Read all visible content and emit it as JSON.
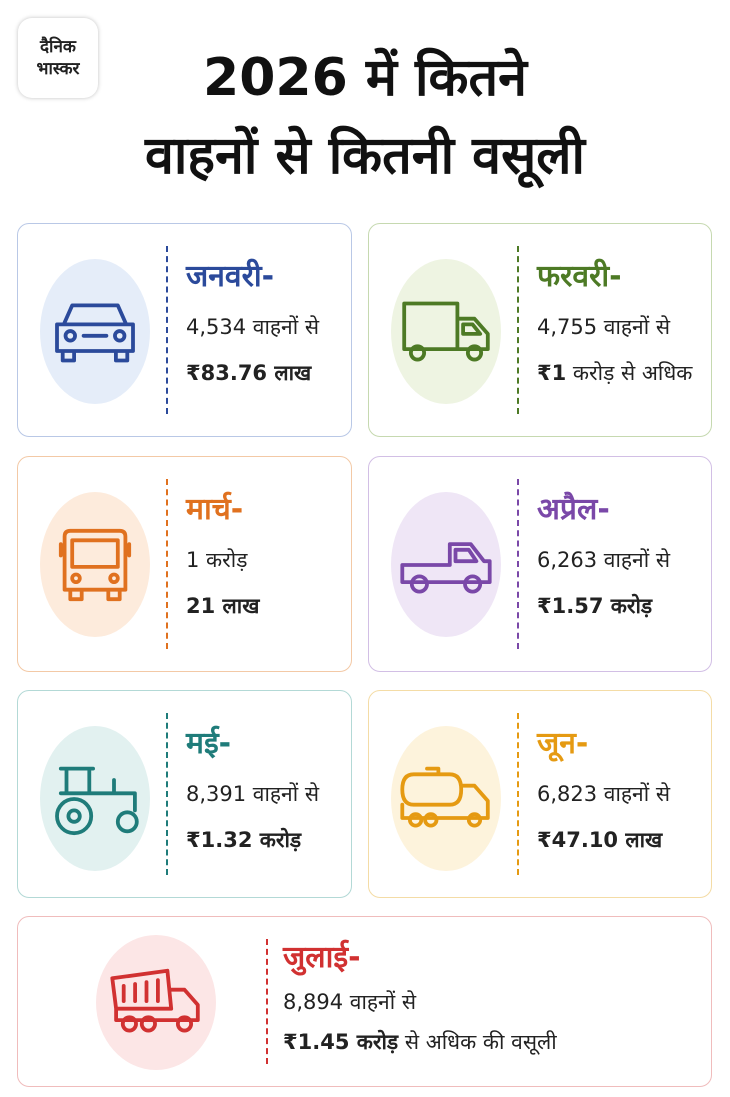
{
  "logo": {
    "line1": "दैनिक",
    "line2": "भास्कर"
  },
  "header": {
    "title_line1": "2026 में कितने",
    "title_line2": "वाहनों से कितनी वसूली"
  },
  "cards": [
    {
      "month": "जनवरी-",
      "line1": "4,534 वाहनों से",
      "line2": "₹83.76 लाख"
    },
    {
      "month": "फरवरी-",
      "line1": "4,755 वाहनों से",
      "line2": "₹1",
      "line2_rest": "करोड़ से अधिक"
    },
    {
      "month": "मार्च-",
      "line1": "1 करोड़",
      "line2": "21 लाख"
    },
    {
      "month": "अप्रैल-",
      "line1": "6,263 वाहनों से",
      "line2": "₹1.57 करोड़"
    },
    {
      "month": "मई-",
      "line1": "8,391 वाहनों से",
      "line2": "₹1.32 करोड़"
    },
    {
      "month": "जून-",
      "line1": "6,823 वाहनों से",
      "line2": "₹47.10 लाख"
    },
    {
      "month": "जुलाई-",
      "line1": "8,894 वाहनों से",
      "line2": "₹1.45 करोड़",
      "line2_rest": "से अधिक की वसूली"
    }
  ]
}
